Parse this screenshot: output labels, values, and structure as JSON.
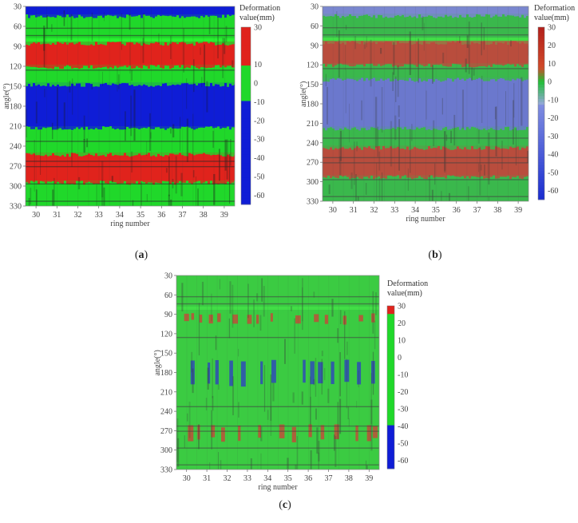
{
  "chart_data": [
    {
      "id": "a",
      "type": "heatmap",
      "panel_label": "(a)",
      "panel_letter": "a",
      "title": "",
      "xlabel": "ring number",
      "ylabel": "angle(°)",
      "x_ticks": [
        "30",
        "31",
        "32",
        "33",
        "34",
        "35",
        "36",
        "37",
        "38",
        "39"
      ],
      "y_ticks": [
        "30",
        "60",
        "90",
        "120",
        "150",
        "180",
        "210",
        "240",
        "270",
        "300",
        "330"
      ],
      "x_range": [
        29.5,
        39.5
      ],
      "y_range": [
        30,
        330
      ],
      "colorbar": {
        "title_lines": [
          "Deformation",
          "value(mm)"
        ],
        "ticks": [
          "30",
          "10",
          "0",
          "-10",
          "-20",
          "-30",
          "-40",
          "-50",
          "-60"
        ],
        "range": [
          -65,
          30
        ],
        "style": "discrete",
        "colors": {
          "positive": "#e0231c",
          "zero": "#20d82a",
          "negative": "#0f1dd6"
        },
        "thresholds": {
          "green_min": -10,
          "green_max": 10
        }
      },
      "bands": [
        {
          "from": 30,
          "to": 42,
          "value": -40
        },
        {
          "from": 42,
          "to": 78,
          "value": 0
        },
        {
          "from": 78,
          "to": 83,
          "value": 0
        },
        {
          "from": 83,
          "to": 118,
          "value": 22
        },
        {
          "from": 118,
          "to": 145,
          "value": 0
        },
        {
          "from": 145,
          "to": 210,
          "value": -45
        },
        {
          "from": 210,
          "to": 250,
          "value": 0
        },
        {
          "from": 250,
          "to": 292,
          "value": 22
        },
        {
          "from": 292,
          "to": 330,
          "value": 0
        }
      ]
    },
    {
      "id": "b",
      "type": "heatmap",
      "panel_label": "(b)",
      "panel_letter": "b",
      "title": "",
      "xlabel": "ring number",
      "ylabel": "angle(°)",
      "x_ticks": [
        "30",
        "31",
        "32",
        "33",
        "34",
        "35",
        "36",
        "37",
        "38",
        "39"
      ],
      "y_ticks": [
        "30",
        "60",
        "90",
        "120",
        "150",
        "180",
        "210",
        "240",
        "270",
        "300",
        "330"
      ],
      "x_range": [
        29.5,
        39.5
      ],
      "y_range": [
        30,
        330
      ],
      "colorbar": {
        "title_lines": [
          "Deformation",
          "value(mm)"
        ],
        "ticks": [
          "30",
          "20",
          "10",
          "0",
          "-10",
          "-20",
          "-30",
          "-40",
          "-50",
          "-60"
        ],
        "range": [
          -65,
          30
        ],
        "style": "continuous",
        "colors": {
          "positive": "#b3201a",
          "zero": "#1fbf36",
          "negative": "#1a2dd0"
        }
      },
      "bands": [
        {
          "from": 30,
          "to": 42,
          "value": -20
        },
        {
          "from": 42,
          "to": 78,
          "value": 0
        },
        {
          "from": 78,
          "to": 83,
          "value": 5
        },
        {
          "from": 83,
          "to": 118,
          "value": 18
        },
        {
          "from": 118,
          "to": 140,
          "value": 0
        },
        {
          "from": 140,
          "to": 215,
          "value": -30
        },
        {
          "from": 215,
          "to": 245,
          "value": 0
        },
        {
          "from": 245,
          "to": 290,
          "value": 18
        },
        {
          "from": 290,
          "to": 330,
          "value": 0
        }
      ]
    },
    {
      "id": "c",
      "type": "heatmap",
      "panel_label": "(c)",
      "panel_letter": "c",
      "title": "",
      "xlabel": "ring number",
      "ylabel": "angle(°)",
      "x_ticks": [
        "30",
        "31",
        "32",
        "33",
        "34",
        "35",
        "36",
        "37",
        "38",
        "39"
      ],
      "y_ticks": [
        "30",
        "60",
        "90",
        "120",
        "150",
        "180",
        "210",
        "240",
        "270",
        "300",
        "330"
      ],
      "x_range": [
        29.5,
        39.5
      ],
      "y_range": [
        30,
        330
      ],
      "colorbar": {
        "title_lines": [
          "Deformation",
          "value(mm)"
        ],
        "ticks": [
          "30",
          "20",
          "10",
          "0",
          "-10",
          "-20",
          "-30",
          "-40",
          "-50",
          "-60"
        ],
        "range": [
          -65,
          30
        ],
        "style": "discrete",
        "colors": {
          "positive": "#e0231c",
          "zero": "#20d82a",
          "negative": "#0f1dd6"
        },
        "thresholds": {
          "green_min": -40,
          "green_max": 25
        }
      },
      "bands": [
        {
          "from": 30,
          "to": 78,
          "value": 0
        },
        {
          "from": 78,
          "to": 83,
          "value": 0
        },
        {
          "from": 83,
          "to": 330,
          "value": 0
        }
      ],
      "hotspots": [
        {
          "angle_from": 88,
          "angle_to": 105,
          "value": 28,
          "rings": [
            30.0,
            30.3,
            30.7,
            31.2,
            31.6,
            32.4,
            33.1,
            33.5,
            34.2,
            35.5,
            36.4,
            36.9,
            37.8,
            38.6,
            39.2
          ]
        },
        {
          "angle_from": 260,
          "angle_to": 285,
          "value": 28,
          "rings": [
            30.2,
            30.6,
            31.3,
            31.8,
            32.6,
            33.6,
            34.7,
            35.3,
            36.1,
            36.7,
            37.4,
            38.4,
            39.0,
            39.3
          ]
        },
        {
          "angle_from": 160,
          "angle_to": 200,
          "value": -50,
          "rings": [
            30.3,
            31.1,
            31.5,
            32.2,
            32.8,
            33.7,
            34.3,
            35.8,
            36.2,
            36.6,
            37.2,
            37.9,
            38.5,
            39.2
          ]
        }
      ]
    }
  ]
}
